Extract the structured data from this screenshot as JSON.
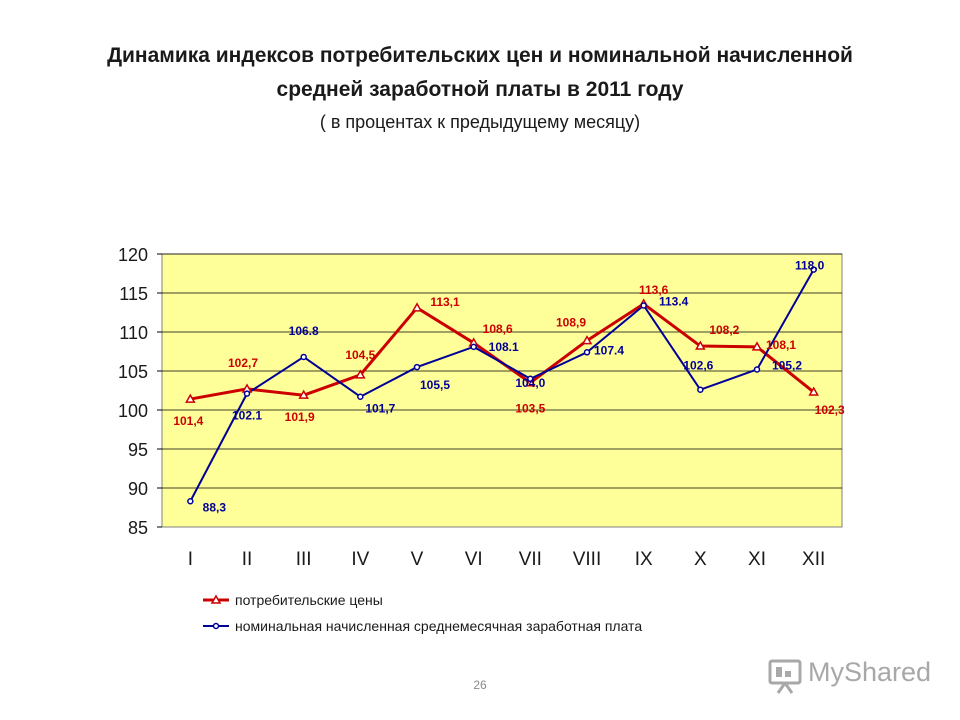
{
  "page": {
    "title_line1": "Динамика индексов потребительских цен и номинальной начисленной",
    "title_line2": "средней заработной платы в 2011 году",
    "subtitle": "( в процентах к предыдущему месяцу)",
    "page_number": "26",
    "watermark_text": "MyShared"
  },
  "chart_data": {
    "type": "line",
    "categories": [
      "I",
      "II",
      "III",
      "IV",
      "V",
      "VI",
      "VII",
      "VIII",
      "IX",
      "X",
      "XI",
      "XII"
    ],
    "ylim": [
      85,
      120
    ],
    "yticks": [
      "85",
      "90",
      "95",
      "100",
      "105",
      "110",
      "115",
      "120"
    ],
    "grid": "horizontal",
    "legend_position": "bottom",
    "plot_background": "#ffff99",
    "series": [
      {
        "name": "потребительские цены",
        "color": "#cc0000",
        "marker": "triangle",
        "values": [
          101.4,
          102.7,
          101.9,
          104.5,
          113.1,
          108.6,
          103.5,
          108.9,
          113.6,
          108.2,
          108.1,
          102.3
        ],
        "labels": [
          "101,4",
          "102,7",
          "101,9",
          "104,5",
          "113,1",
          "108,6",
          "103,5",
          "108,9",
          "113,6",
          "108,2",
          "108,1",
          "102,3"
        ]
      },
      {
        "name": "номинальная начисленная среднемесячная заработная плата",
        "color": "#000099",
        "marker": "circle",
        "values": [
          88.3,
          102.1,
          106.8,
          101.7,
          105.5,
          108.1,
          104.0,
          107.4,
          113.4,
          102.6,
          105.2,
          118.0
        ],
        "labels": [
          "88,3",
          "102.1",
          "106.8",
          "101,7",
          "105,5",
          "108.1",
          "104,0",
          "107.4",
          "113.4",
          "102,6",
          "105,2",
          "118,0"
        ]
      }
    ]
  }
}
